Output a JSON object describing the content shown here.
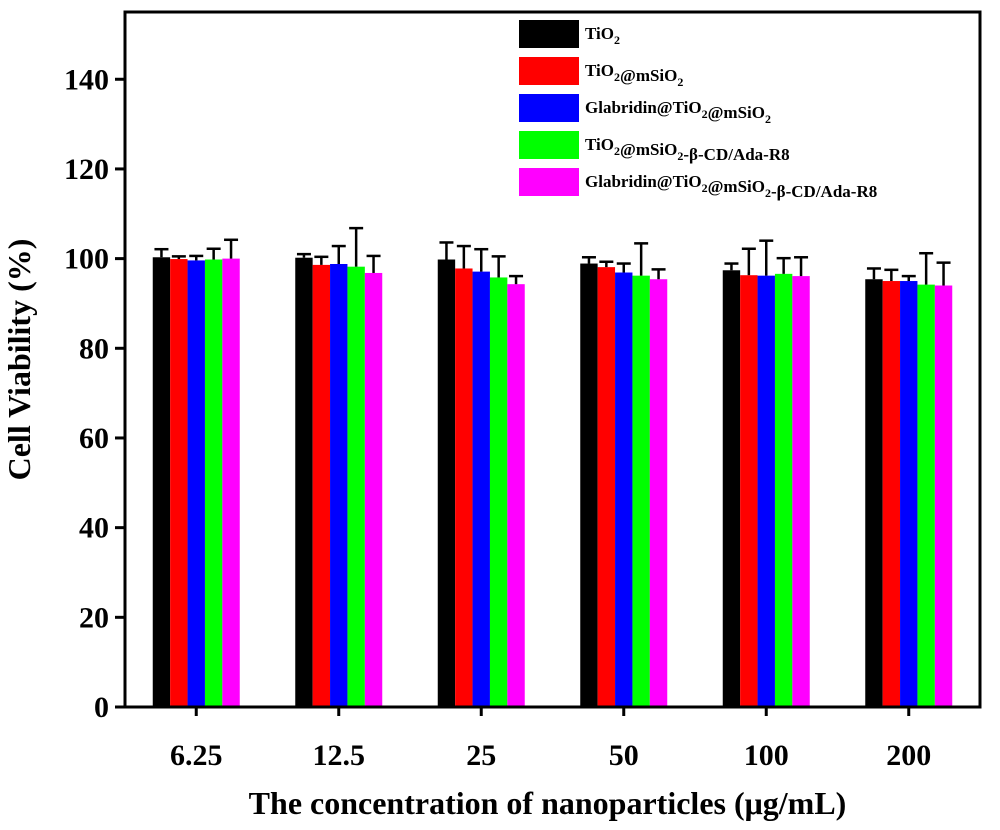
{
  "chart_data": {
    "type": "bar",
    "title": "",
    "xlabel": "The concentration of nanoparticles (μg/mL)",
    "ylabel": "Cell Viability (%)",
    "ylim": [
      0,
      155
    ],
    "yticks": [
      0,
      20,
      40,
      60,
      80,
      100,
      120,
      140
    ],
    "categories": [
      "6.25",
      "12.5",
      "25",
      "50",
      "100",
      "200"
    ],
    "legend_position": "top-right",
    "error_bars": "upper",
    "series": [
      {
        "name": "TiO2",
        "color": "#000000",
        "values": [
          100.3,
          100.2,
          99.8,
          98.9,
          97.4,
          95.4
        ],
        "errors": [
          1.8,
          0.8,
          3.8,
          1.4,
          1.5,
          2.4
        ]
      },
      {
        "name": "TiO2@mSiO2",
        "color": "#ff0000",
        "values": [
          99.9,
          98.6,
          97.8,
          98.1,
          96.3,
          95.0
        ],
        "errors": [
          0.6,
          1.8,
          5.0,
          1.2,
          5.9,
          2.5
        ]
      },
      {
        "name": "Glabridin@TiO2@mSiO2",
        "color": "#0000ff",
        "values": [
          99.6,
          98.8,
          97.1,
          96.9,
          96.2,
          95.0
        ],
        "errors": [
          1.0,
          4.0,
          5.0,
          2.0,
          7.8,
          1.1
        ]
      },
      {
        "name": "TiO2@mSiO2-β-CD/Ada-R8",
        "color": "#00ff00",
        "values": [
          99.8,
          98.2,
          95.8,
          96.2,
          96.6,
          94.2
        ],
        "errors": [
          2.4,
          8.6,
          4.7,
          7.2,
          3.5,
          7.0
        ]
      },
      {
        "name": "Glabridin@TiO2@mSiO2-β-CD/Ada-R8",
        "color": "#ff00ff",
        "values": [
          100.0,
          96.8,
          94.3,
          95.4,
          96.1,
          94.0
        ],
        "errors": [
          4.2,
          3.8,
          1.8,
          2.2,
          4.2,
          5.1
        ]
      }
    ]
  }
}
